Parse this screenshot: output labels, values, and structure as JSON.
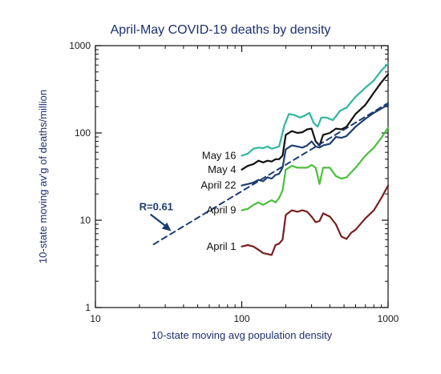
{
  "chart_data": {
    "type": "line",
    "title": "April-May COVID-19 deaths by density",
    "xlabel": "10-state moving avg population density",
    "ylabel": "10-state moving av'g of deaths/million",
    "x_scale": "log",
    "y_scale": "log",
    "xlim": [
      10,
      1000
    ],
    "ylim": [
      1,
      1000
    ],
    "x_ticks": [
      10,
      100,
      1000
    ],
    "y_ticks": [
      1,
      10,
      100,
      1000
    ],
    "grid": false,
    "series": [
      {
        "name": "May 16",
        "color": "#2fb79e",
        "style": "solid",
        "points": [
          [
            100,
            55
          ],
          [
            110,
            58
          ],
          [
            120,
            66
          ],
          [
            130,
            68
          ],
          [
            140,
            67
          ],
          [
            150,
            70
          ],
          [
            160,
            66
          ],
          [
            170,
            68
          ],
          [
            180,
            70
          ],
          [
            195,
            120
          ],
          [
            210,
            165
          ],
          [
            230,
            160
          ],
          [
            250,
            150
          ],
          [
            270,
            158
          ],
          [
            290,
            170
          ],
          [
            310,
            130
          ],
          [
            330,
            118
          ],
          [
            350,
            150
          ],
          [
            380,
            150
          ],
          [
            420,
            140
          ],
          [
            470,
            180
          ],
          [
            520,
            195
          ],
          [
            600,
            260
          ],
          [
            700,
            330
          ],
          [
            800,
            400
          ],
          [
            900,
            520
          ],
          [
            1000,
            620
          ]
        ]
      },
      {
        "name": "May 4",
        "color": "#111111",
        "style": "solid",
        "points": [
          [
            100,
            38
          ],
          [
            110,
            42
          ],
          [
            120,
            44
          ],
          [
            130,
            48
          ],
          [
            140,
            46
          ],
          [
            150,
            48
          ],
          [
            160,
            47
          ],
          [
            170,
            50
          ],
          [
            180,
            50
          ],
          [
            190,
            55
          ],
          [
            200,
            95
          ],
          [
            220,
            105
          ],
          [
            240,
            100
          ],
          [
            260,
            102
          ],
          [
            280,
            110
          ],
          [
            300,
            112
          ],
          [
            320,
            80
          ],
          [
            340,
            72
          ],
          [
            360,
            95
          ],
          [
            400,
            100
          ],
          [
            440,
            112
          ],
          [
            480,
            110
          ],
          [
            520,
            118
          ],
          [
            600,
            165
          ],
          [
            700,
            210
          ],
          [
            800,
            290
          ],
          [
            900,
            380
          ],
          [
            1000,
            470
          ]
        ]
      },
      {
        "name": "April 22",
        "color": "#1f3f73",
        "style": "solid",
        "points": [
          [
            100,
            25
          ],
          [
            110,
            26
          ],
          [
            120,
            27
          ],
          [
            130,
            29
          ],
          [
            140,
            28
          ],
          [
            150,
            31
          ],
          [
            160,
            30
          ],
          [
            170,
            33
          ],
          [
            180,
            34
          ],
          [
            190,
            40
          ],
          [
            200,
            65
          ],
          [
            220,
            72
          ],
          [
            240,
            70
          ],
          [
            260,
            68
          ],
          [
            280,
            72
          ],
          [
            300,
            80
          ],
          [
            320,
            70
          ],
          [
            340,
            68
          ],
          [
            360,
            72
          ],
          [
            400,
            75
          ],
          [
            440,
            90
          ],
          [
            480,
            88
          ],
          [
            520,
            92
          ],
          [
            600,
            118
          ],
          [
            700,
            145
          ],
          [
            800,
            170
          ],
          [
            900,
            190
          ],
          [
            1000,
            210
          ]
        ]
      },
      {
        "name": "April 9",
        "color": "#4cbf3d",
        "style": "solid",
        "points": [
          [
            100,
            13
          ],
          [
            110,
            13.5
          ],
          [
            120,
            15
          ],
          [
            130,
            16
          ],
          [
            140,
            15
          ],
          [
            150,
            16
          ],
          [
            160,
            17
          ],
          [
            170,
            16
          ],
          [
            180,
            18
          ],
          [
            190,
            22
          ],
          [
            200,
            38
          ],
          [
            220,
            42
          ],
          [
            240,
            40
          ],
          [
            260,
            40
          ],
          [
            280,
            40
          ],
          [
            300,
            43
          ],
          [
            320,
            40
          ],
          [
            340,
            26
          ],
          [
            360,
            40
          ],
          [
            400,
            40
          ],
          [
            440,
            32
          ],
          [
            480,
            30
          ],
          [
            520,
            31
          ],
          [
            600,
            40
          ],
          [
            700,
            55
          ],
          [
            800,
            68
          ],
          [
            900,
            88
          ],
          [
            1000,
            115
          ]
        ]
      },
      {
        "name": "April 1",
        "color": "#7a1f1f",
        "style": "solid",
        "points": [
          [
            100,
            5
          ],
          [
            110,
            5.2
          ],
          [
            120,
            5
          ],
          [
            130,
            4.6
          ],
          [
            140,
            4.2
          ],
          [
            150,
            4.1
          ],
          [
            160,
            4.0
          ],
          [
            170,
            5.2
          ],
          [
            180,
            5.4
          ],
          [
            190,
            6
          ],
          [
            200,
            11.5
          ],
          [
            220,
            13
          ],
          [
            240,
            12.5
          ],
          [
            260,
            13
          ],
          [
            280,
            12.5
          ],
          [
            300,
            11
          ],
          [
            320,
            9.5
          ],
          [
            340,
            9.8
          ],
          [
            360,
            12
          ],
          [
            400,
            11
          ],
          [
            440,
            9
          ],
          [
            480,
            6.5
          ],
          [
            520,
            6.1
          ],
          [
            560,
            7.2
          ],
          [
            600,
            7.8
          ],
          [
            700,
            10.5
          ],
          [
            800,
            13
          ],
          [
            900,
            18
          ],
          [
            1000,
            25
          ]
        ]
      },
      {
        "name": "R=0.61",
        "color": "#1c3b73",
        "style": "dashed",
        "points": [
          [
            25,
            5.3
          ],
          [
            1000,
            220
          ]
        ]
      }
    ],
    "annotations": [
      {
        "text": "R=0.61",
        "target": [
          33,
          7.5
        ]
      }
    ]
  }
}
